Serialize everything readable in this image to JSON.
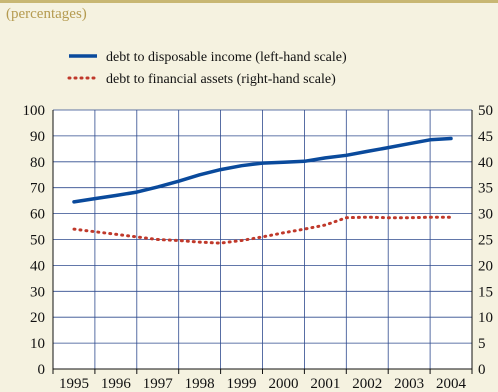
{
  "subtitle": "(percentages)",
  "colors": {
    "background": "#f5f2e0",
    "plot_background": "#ffffff",
    "grid": "#2e4a8e",
    "accent_rule": "#c8b773",
    "subtitle_text": "#b59b50"
  },
  "chart_data": {
    "type": "line",
    "x": [
      "1995",
      "1996",
      "1997",
      "1998",
      "1999",
      "2000",
      "2001",
      "2002",
      "2003",
      "2004"
    ],
    "left_axis": {
      "ylim": [
        0,
        100
      ],
      "ticks": [
        "0",
        "10",
        "20",
        "30",
        "40",
        "50",
        "60",
        "70",
        "80",
        "90",
        "100"
      ]
    },
    "right_axis": {
      "ylim": [
        0,
        50
      ],
      "ticks": [
        "0",
        "5",
        "10",
        "15",
        "20",
        "25",
        "30",
        "35",
        "40",
        "45",
        "50"
      ]
    },
    "grid": true,
    "legend_position": "top-left",
    "series": [
      {
        "name": "debt to disposable income (left-hand scale)",
        "axis": "left",
        "style": "solid",
        "color": "#0a4a9c",
        "x": [
          1995.0,
          1995.5,
          1996.0,
          1996.5,
          1997.0,
          1997.5,
          1998.0,
          1998.5,
          1999.0,
          1999.5,
          2000.0,
          2000.5,
          2001.0,
          2001.5,
          2002.0,
          2002.5,
          2003.0,
          2003.5,
          2004.0
        ],
        "values": [
          64.5,
          65.8,
          67.0,
          68.3,
          70.3,
          72.5,
          75.0,
          77.0,
          78.5,
          79.5,
          79.8,
          80.2,
          81.5,
          82.5,
          84.0,
          85.5,
          87.0,
          88.5,
          89.0
        ]
      },
      {
        "name": "debt to financial assets (right-hand scale)",
        "axis": "right",
        "style": "dotted",
        "color": "#c0392b",
        "x": [
          1995.0,
          1995.5,
          1996.0,
          1996.5,
          1997.0,
          1997.5,
          1998.0,
          1998.5,
          1999.0,
          1999.5,
          2000.0,
          2000.5,
          2001.0,
          2001.5,
          2002.0,
          2002.5,
          2003.0,
          2003.5,
          2004.0
        ],
        "values": [
          27.0,
          26.5,
          26.0,
          25.5,
          25.0,
          24.8,
          24.5,
          24.3,
          24.8,
          25.5,
          26.3,
          27.0,
          27.8,
          29.2,
          29.3,
          29.2,
          29.2,
          29.3,
          29.3
        ]
      }
    ]
  }
}
